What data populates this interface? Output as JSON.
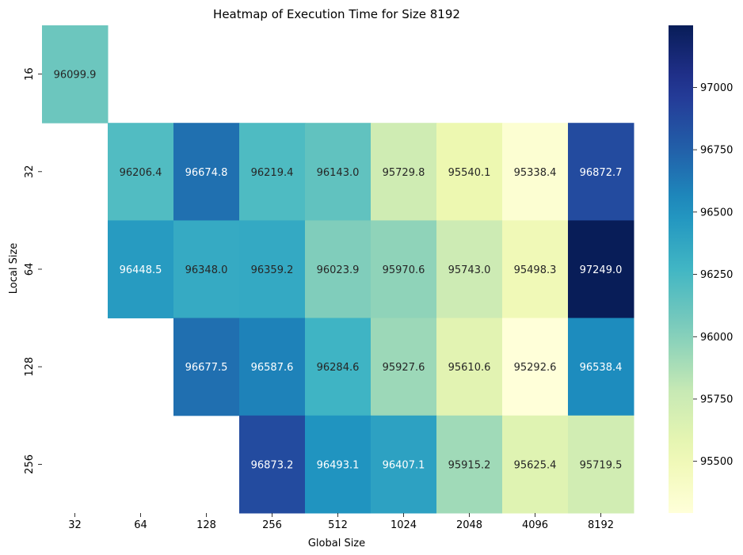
{
  "chart_data": {
    "type": "heatmap",
    "title": "Heatmap of Execution Time for Size 8192",
    "xlabel": "Global Size",
    "ylabel": "Local Size",
    "x_categories": [
      "32",
      "64",
      "128",
      "256",
      "512",
      "1024",
      "2048",
      "4096",
      "8192"
    ],
    "y_categories": [
      "16",
      "32",
      "64",
      "128",
      "256"
    ],
    "values": [
      [
        96099.9,
        null,
        null,
        null,
        null,
        null,
        null,
        null,
        null
      ],
      [
        null,
        96206.4,
        96674.8,
        96219.4,
        96143.0,
        95729.8,
        95540.1,
        95338.4,
        96872.7
      ],
      [
        null,
        96448.5,
        96348.0,
        96359.2,
        96023.9,
        95970.6,
        95743.0,
        95498.3,
        97249.0
      ],
      [
        null,
        null,
        96677.5,
        96587.6,
        96284.6,
        95927.6,
        95610.6,
        95292.6,
        96538.4
      ],
      [
        null,
        null,
        null,
        96873.2,
        96493.1,
        96407.1,
        95915.2,
        95625.4,
        95719.5
      ]
    ],
    "labels": [
      [
        "96099.9",
        "",
        "",
        "",
        "",
        "",
        "",
        "",
        ""
      ],
      [
        "",
        "96206.4",
        "96674.8",
        "96219.4",
        "96143.0",
        "95729.8",
        "95540.1",
        "95338.4",
        "96872.7"
      ],
      [
        "",
        "96448.5",
        "96348.0",
        "96359.2",
        "96023.9",
        "95970.6",
        "95743.0",
        "95498.3",
        "97249.0"
      ],
      [
        "",
        "",
        "96677.5",
        "96587.6",
        "96284.6",
        "95927.6",
        "95610.6",
        "95292.6",
        "96538.4"
      ],
      [
        "",
        "",
        "",
        "96873.2",
        "96493.1",
        "96407.1",
        "95915.2",
        "95625.4",
        "95719.5"
      ]
    ],
    "colormap": "YlGnBu",
    "vmin": 95292.6,
    "vmax": 97249.0,
    "colorbar_ticks": [
      "95500",
      "95750",
      "96000",
      "96250",
      "96500",
      "96750",
      "97000"
    ],
    "colorbar_tick_values": [
      95500,
      95750,
      96000,
      96250,
      96500,
      96750,
      97000
    ],
    "legend_position": "right",
    "grid": false
  }
}
